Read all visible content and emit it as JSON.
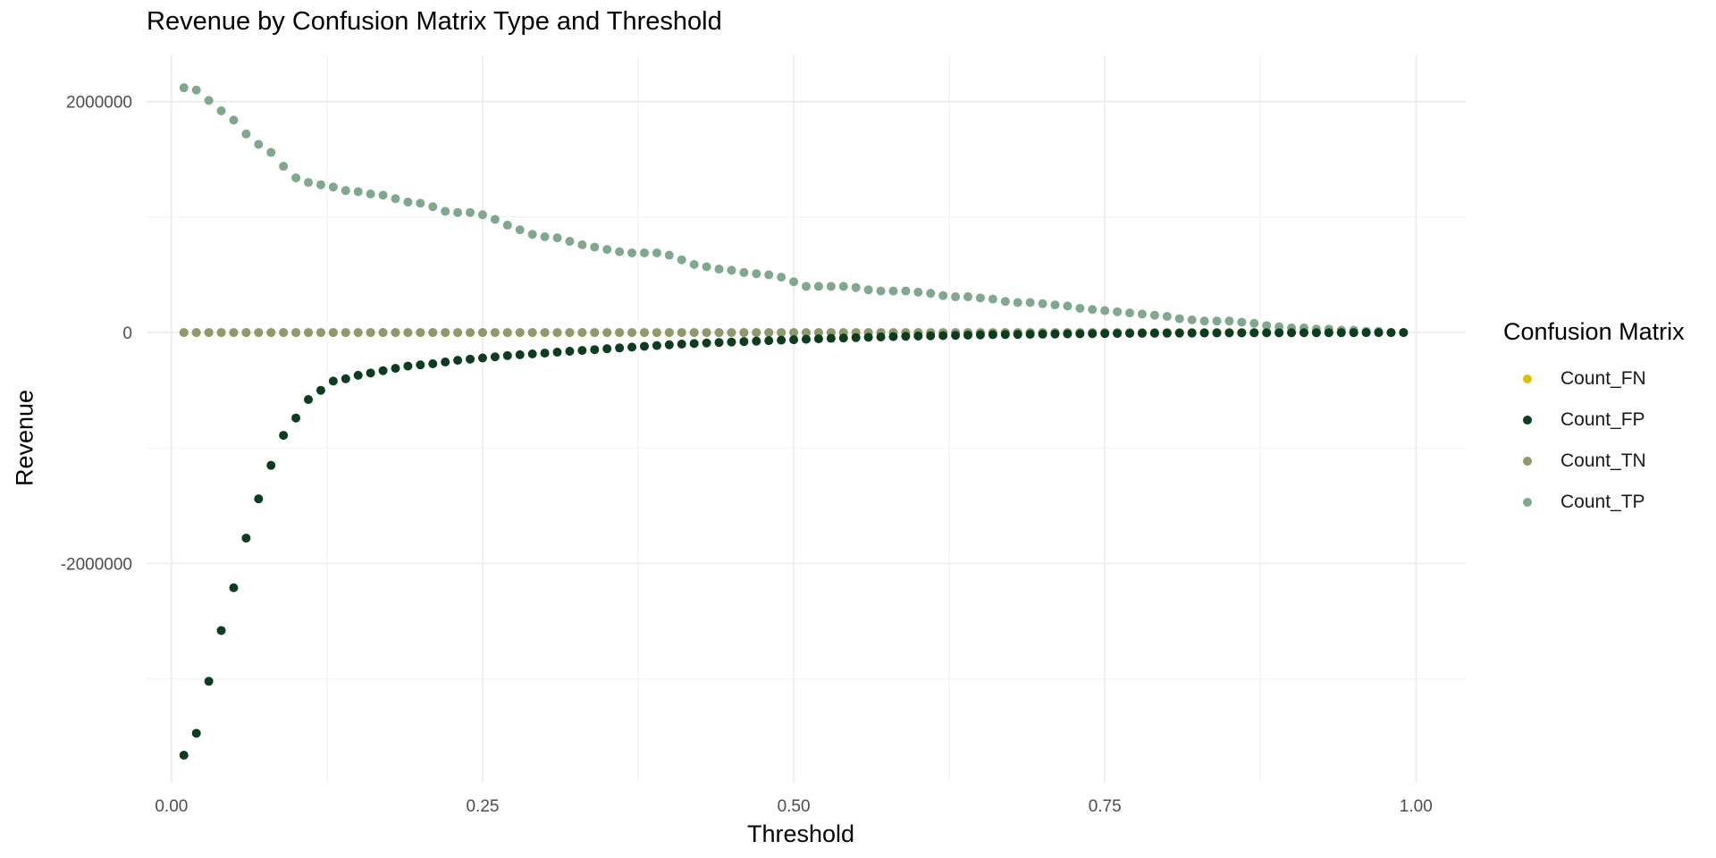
{
  "chart_data": {
    "type": "scatter",
    "title": "Revenue by Confusion Matrix Type and Threshold",
    "xlabel": "Threshold",
    "ylabel": "Revenue",
    "xlim": [
      -0.02,
      1.04
    ],
    "ylim": [
      -3900000,
      2400000
    ],
    "x_ticks": [
      0.0,
      0.25,
      0.5,
      0.75,
      1.0
    ],
    "x_tick_labels": [
      "0.00",
      "0.25",
      "0.50",
      "0.75",
      "1.00"
    ],
    "y_ticks": [
      -2000000,
      0,
      2000000
    ],
    "y_tick_labels": [
      "-2000000",
      "0",
      "2000000"
    ],
    "grid": true,
    "legend_title": "Confusion Matrix",
    "legend_position": "right",
    "x": [
      0.01,
      0.02,
      0.03,
      0.04,
      0.05,
      0.06,
      0.07,
      0.08,
      0.09,
      0.1,
      0.11,
      0.12,
      0.13,
      0.14,
      0.15,
      0.16,
      0.17,
      0.18,
      0.19,
      0.2,
      0.21,
      0.22,
      0.23,
      0.24,
      0.25,
      0.26,
      0.27,
      0.28,
      0.29,
      0.3,
      0.31,
      0.32,
      0.33,
      0.34,
      0.35,
      0.36,
      0.37,
      0.38,
      0.39,
      0.4,
      0.41,
      0.42,
      0.43,
      0.44,
      0.45,
      0.46,
      0.47,
      0.48,
      0.49,
      0.5,
      0.51,
      0.52,
      0.53,
      0.54,
      0.55,
      0.56,
      0.57,
      0.58,
      0.59,
      0.6,
      0.61,
      0.62,
      0.63,
      0.64,
      0.65,
      0.66,
      0.67,
      0.68,
      0.69,
      0.7,
      0.71,
      0.72,
      0.73,
      0.74,
      0.75,
      0.76,
      0.77,
      0.78,
      0.79,
      0.8,
      0.81,
      0.82,
      0.83,
      0.84,
      0.85,
      0.86,
      0.87,
      0.88,
      0.89,
      0.9,
      0.91,
      0.92,
      0.93,
      0.94,
      0.95,
      0.96,
      0.97,
      0.98,
      0.99
    ],
    "series": [
      {
        "name": "Count_FN",
        "color": "#E3BE00",
        "values": [
          0,
          0,
          0,
          0,
          0,
          0,
          0,
          0,
          0,
          0,
          0,
          0,
          0,
          0,
          0,
          0,
          0,
          0,
          0,
          0,
          0,
          0,
          0,
          0,
          0,
          0,
          0,
          0,
          0,
          0,
          0,
          0,
          0,
          0,
          0,
          0,
          0,
          0,
          0,
          0,
          0,
          0,
          0,
          0,
          0,
          0,
          0,
          0,
          0,
          0,
          0,
          0,
          0,
          0,
          0,
          0,
          0,
          0,
          0,
          0,
          0,
          0,
          0,
          0,
          0,
          0,
          0,
          0,
          0,
          0,
          0,
          0,
          0,
          0,
          0,
          0,
          0,
          0,
          0,
          0,
          0,
          0,
          0,
          0,
          0,
          0,
          0,
          0,
          0,
          0,
          0,
          0,
          0,
          0,
          0,
          0,
          0,
          0,
          0
        ]
      },
      {
        "name": "Count_FP",
        "color": "#0B3D1E",
        "values": [
          -3660000,
          -3470000,
          -3020000,
          -2580000,
          -2210000,
          -1780000,
          -1440000,
          -1150000,
          -890000,
          -740000,
          -580000,
          -500000,
          -420000,
          -400000,
          -370000,
          -350000,
          -330000,
          -310000,
          -290000,
          -280000,
          -270000,
          -255000,
          -240000,
          -230000,
          -220000,
          -210000,
          -200000,
          -192000,
          -185000,
          -178000,
          -170000,
          -162000,
          -155000,
          -148000,
          -140000,
          -133000,
          -126000,
          -119000,
          -112000,
          -106000,
          -100000,
          -95000,
          -90000,
          -86000,
          -82000,
          -78000,
          -74000,
          -70000,
          -66000,
          -62000,
          -58000,
          -54000,
          -50000,
          -47000,
          -44000,
          -41000,
          -38000,
          -35000,
          -32000,
          -30000,
          -28000,
          -26000,
          -24000,
          -22000,
          -20000,
          -18000,
          -17000,
          -16000,
          -15000,
          -14000,
          -13000,
          -12000,
          -11000,
          -10000,
          -9000,
          -8000,
          -7000,
          -6500,
          -6000,
          -5500,
          -5000,
          -4500,
          -4000,
          -3500,
          -3000,
          -2700,
          -2400,
          -2100,
          -1800,
          -1500,
          -1300,
          -1100,
          -900,
          -700,
          -500,
          -400,
          -300,
          -200,
          -100
        ]
      },
      {
        "name": "Count_TN",
        "color": "#8C9A6E",
        "values": [
          0,
          0,
          0,
          0,
          0,
          0,
          0,
          0,
          0,
          0,
          0,
          0,
          0,
          0,
          0,
          0,
          0,
          0,
          0,
          0,
          0,
          0,
          0,
          0,
          0,
          0,
          0,
          0,
          0,
          0,
          0,
          0,
          0,
          0,
          0,
          0,
          0,
          0,
          0,
          0,
          0,
          0,
          0,
          0,
          0,
          0,
          0,
          0,
          0,
          0,
          0,
          0,
          0,
          0,
          0,
          0,
          0,
          0,
          0,
          0,
          0,
          0,
          0,
          0,
          0,
          0,
          0,
          0,
          0,
          0,
          0,
          0,
          0,
          0,
          0,
          0,
          0,
          0,
          0,
          0,
          0,
          0,
          0,
          0,
          0,
          0,
          0,
          0,
          0,
          0,
          0,
          0,
          0,
          0,
          0,
          0,
          0,
          0,
          0
        ]
      },
      {
        "name": "Count_TP",
        "color": "#7FA88D",
        "values": [
          2120000,
          2100000,
          2010000,
          1920000,
          1840000,
          1720000,
          1630000,
          1560000,
          1440000,
          1340000,
          1300000,
          1280000,
          1260000,
          1230000,
          1220000,
          1200000,
          1190000,
          1160000,
          1130000,
          1120000,
          1090000,
          1050000,
          1040000,
          1040000,
          1020000,
          980000,
          930000,
          890000,
          850000,
          830000,
          820000,
          790000,
          760000,
          740000,
          720000,
          700000,
          690000,
          690000,
          690000,
          670000,
          630000,
          590000,
          570000,
          550000,
          540000,
          520000,
          510000,
          500000,
          480000,
          440000,
          400000,
          400000,
          400000,
          400000,
          390000,
          370000,
          360000,
          360000,
          360000,
          350000,
          340000,
          320000,
          310000,
          310000,
          300000,
          290000,
          270000,
          260000,
          260000,
          250000,
          240000,
          230000,
          210000,
          200000,
          190000,
          180000,
          170000,
          160000,
          150000,
          140000,
          120000,
          110000,
          100000,
          100000,
          100000,
          90000,
          80000,
          60000,
          50000,
          40000,
          40000,
          30000,
          30000,
          20000,
          20000,
          10000,
          10000,
          0,
          0
        ]
      }
    ]
  }
}
